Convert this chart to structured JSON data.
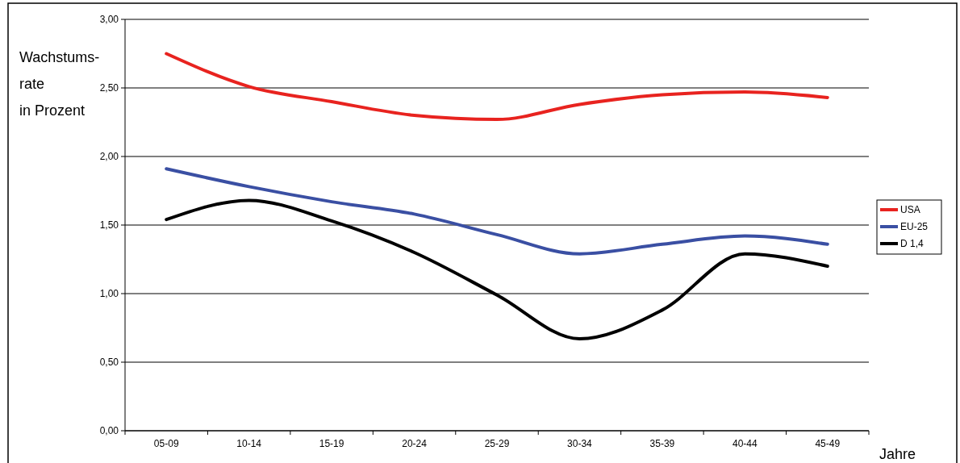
{
  "chart_data": {
    "type": "line",
    "ylabel": "Wachstums-\nrate\nin Prozent",
    "xlabel": "Jahre",
    "categories": [
      "05-09",
      "10-14",
      "15-19",
      "20-24",
      "25-29",
      "30-34",
      "35-39",
      "40-44",
      "45-49"
    ],
    "series": [
      {
        "name": "USA",
        "color": "#e8231f",
        "values": [
          2.75,
          2.51,
          2.4,
          2.3,
          2.27,
          2.38,
          2.45,
          2.47,
          2.43
        ]
      },
      {
        "name": "EU-25",
        "color": "#3a4fa3",
        "values": [
          1.91,
          1.78,
          1.67,
          1.58,
          1.43,
          1.29,
          1.36,
          1.42,
          1.36
        ]
      },
      {
        "name": "D 1,4",
        "color": "#000000",
        "values": [
          1.54,
          1.68,
          1.53,
          1.3,
          0.99,
          0.67,
          0.88,
          1.29,
          1.2
        ]
      }
    ],
    "ylim": [
      0,
      3
    ],
    "yticks": [
      {
        "value": 0,
        "label": "0,00"
      },
      {
        "value": 0.5,
        "label": "0,50"
      },
      {
        "value": 1,
        "label": "1,00"
      },
      {
        "value": 1.5,
        "label": "1,50"
      },
      {
        "value": 2,
        "label": "2,00"
      },
      {
        "value": 2.5,
        "label": "2,50"
      },
      {
        "value": 3,
        "label": "3,00"
      }
    ],
    "grid": "y",
    "legend": "right",
    "marker": "none",
    "line_style": "solid"
  }
}
